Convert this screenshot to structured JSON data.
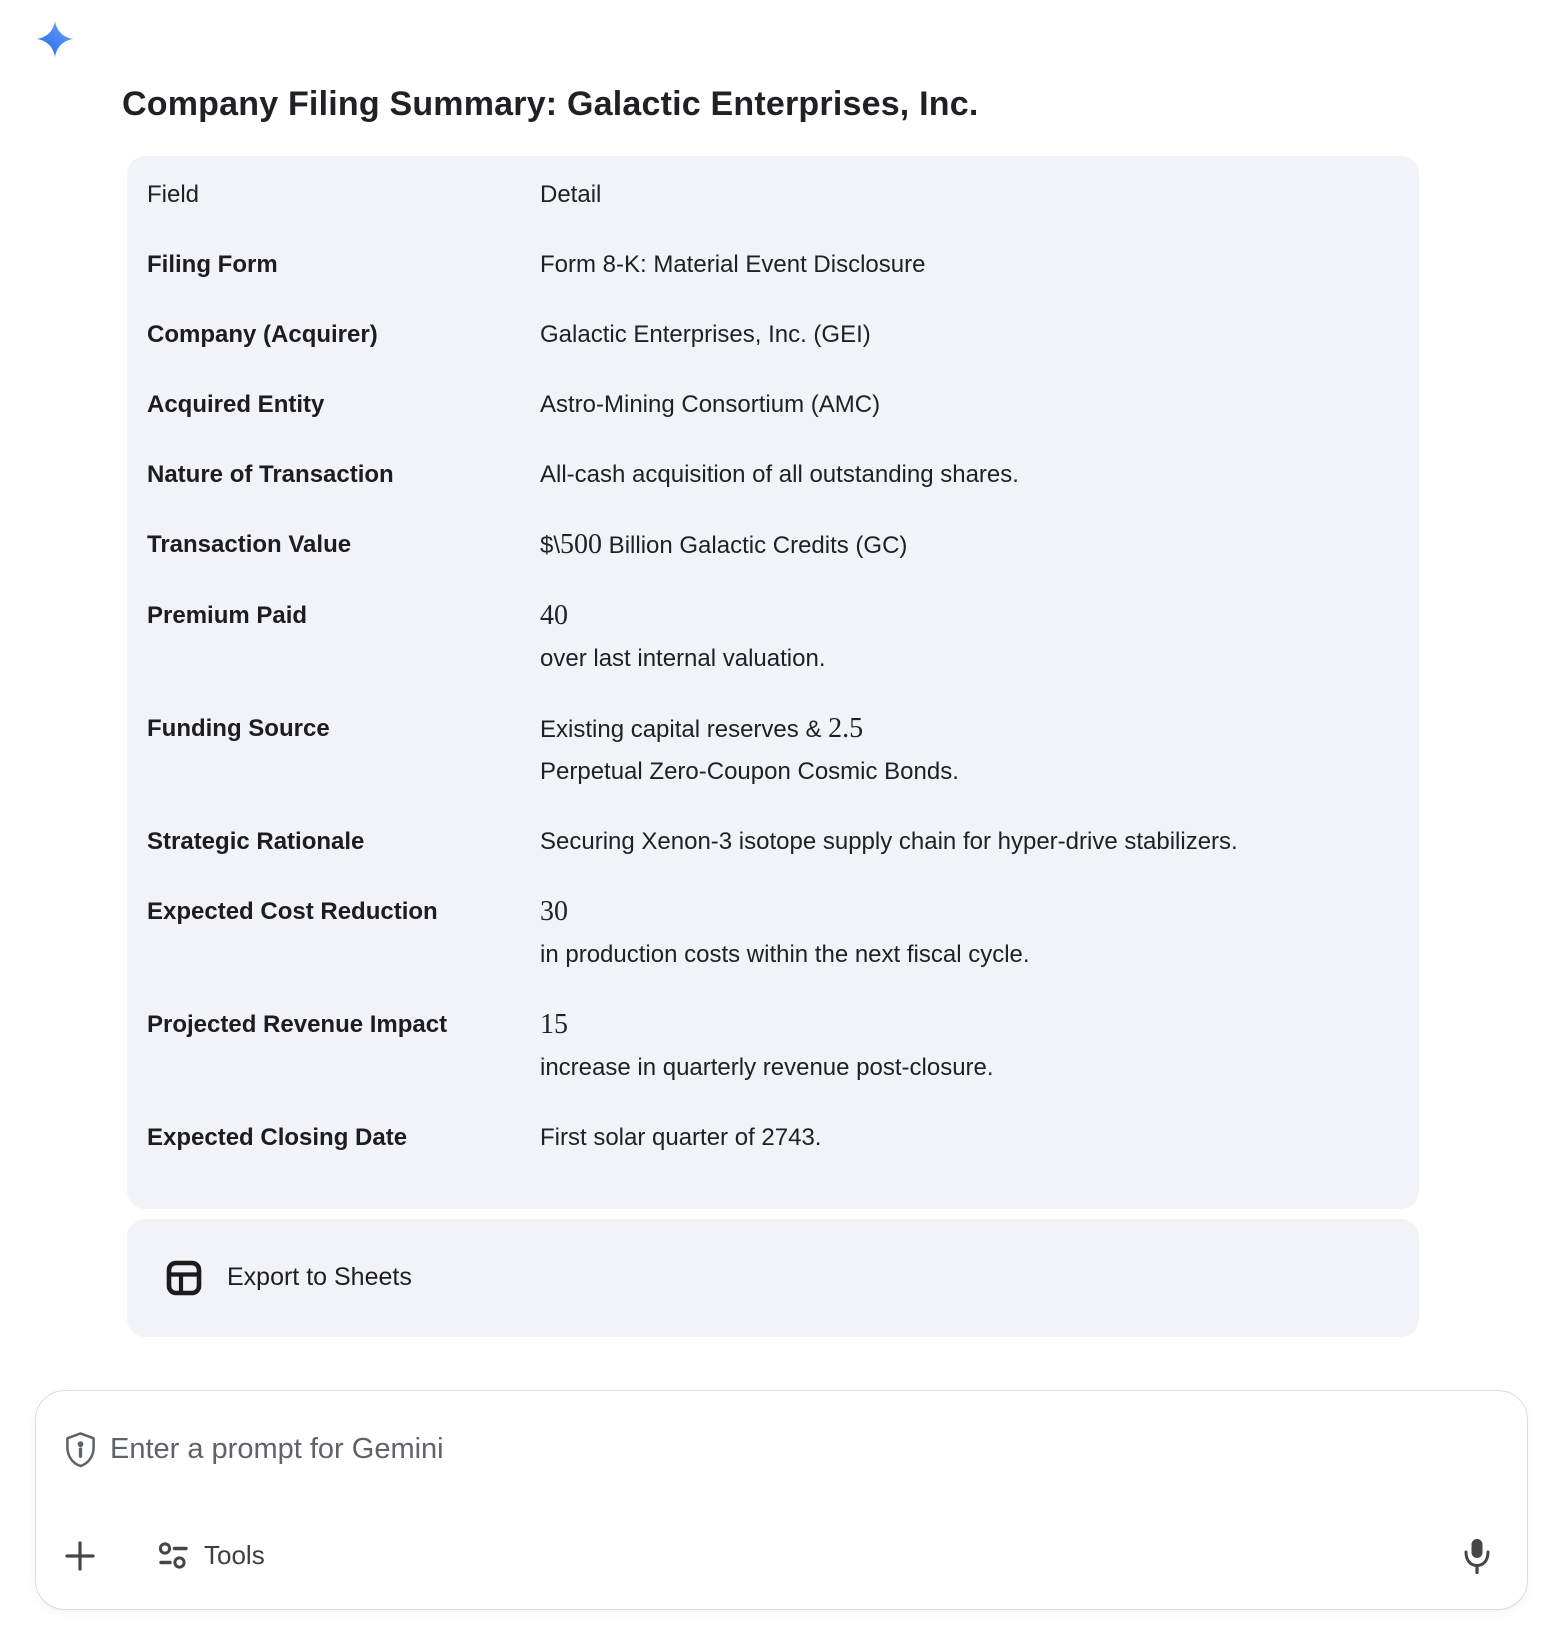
{
  "header": {
    "title": "Company Filing Summary: Galactic Enterprises, Inc."
  },
  "table": {
    "columns": [
      "Field",
      "Detail"
    ],
    "rows": [
      {
        "field": "Filing Form",
        "lines": [
          [
            {
              "t": "Form 8-K: Material Event Disclosure"
            }
          ]
        ]
      },
      {
        "field": "Company (Acquirer)",
        "lines": [
          [
            {
              "t": "Galactic Enterprises, Inc. (GEI)"
            }
          ]
        ]
      },
      {
        "field": "Acquired Entity",
        "lines": [
          [
            {
              "t": "Astro-Mining Consortium (AMC)"
            }
          ]
        ]
      },
      {
        "field": "Nature of Transaction",
        "lines": [
          [
            {
              "t": "All-cash acquisition of all outstanding shares."
            }
          ]
        ]
      },
      {
        "field": "Transaction Value",
        "lines": [
          [
            {
              "t": "$\\"
            },
            {
              "t": "500",
              "serif": true
            },
            {
              "t": " Billion Galactic Credits (GC)"
            }
          ]
        ]
      },
      {
        "field": "Premium Paid",
        "lines": [
          [
            {
              "t": "40",
              "serif": true
            }
          ],
          [
            {
              "t": "over last internal valuation."
            }
          ]
        ]
      },
      {
        "field": "Funding Source",
        "lines": [
          [
            {
              "t": "Existing capital reserves & "
            },
            {
              "t": "2.5",
              "serif": true
            }
          ],
          [
            {
              "t": "Perpetual Zero-Coupon Cosmic Bonds."
            }
          ]
        ]
      },
      {
        "field": "Strategic Rationale",
        "lines": [
          [
            {
              "t": "Securing Xenon-3 isotope supply chain for hyper-drive stabilizers."
            }
          ]
        ]
      },
      {
        "field": "Expected Cost Reduction",
        "lines": [
          [
            {
              "t": "30",
              "serif": true
            }
          ],
          [
            {
              "t": "in production costs within the next fiscal cycle."
            }
          ]
        ]
      },
      {
        "field": "Projected Revenue Impact",
        "lines": [
          [
            {
              "t": "15",
              "serif": true
            }
          ],
          [
            {
              "t": "increase in quarterly revenue post-closure."
            }
          ]
        ]
      },
      {
        "field": "Expected Closing Date",
        "lines": [
          [
            {
              "t": "First solar quarter of 2743."
            }
          ]
        ]
      }
    ]
  },
  "export": {
    "label": "Export to Sheets",
    "icon": "sheets-table-icon"
  },
  "prompt": {
    "placeholder": "Enter a prompt for Gemini",
    "tools_label": "Tools",
    "icons": [
      "shield-icon",
      "plus-icon",
      "tune-icon",
      "microphone-icon"
    ]
  },
  "branding": {
    "icon": "gemini-sparkle-icon"
  },
  "colors": {
    "card_bg": "#f1f3f8",
    "text": "#1f1f1f",
    "muted": "#5f6368",
    "icon_gray": "#444746",
    "prompt_border": "#d9dce1",
    "sparkle_blue_light": "#69a1fa",
    "sparkle_blue_dark": "#1e66e8"
  }
}
